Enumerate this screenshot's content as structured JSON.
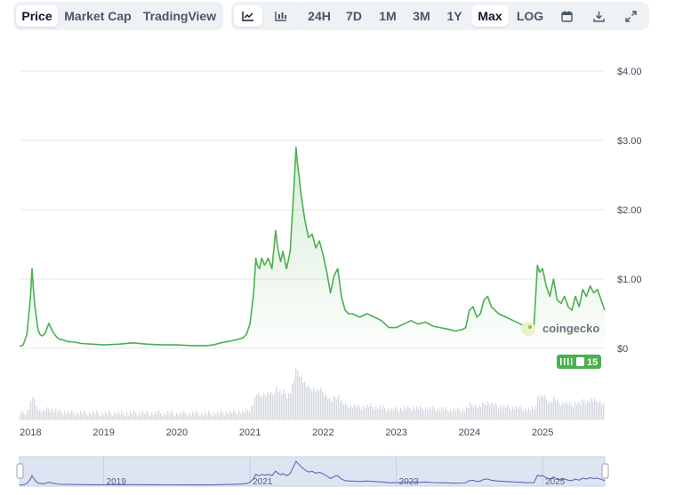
{
  "toolbar": {
    "tabs": [
      {
        "label": "Price",
        "active": true
      },
      {
        "label": "Market Cap",
        "active": false
      },
      {
        "label": "TradingView",
        "active": false
      }
    ],
    "chart_types": [
      {
        "icon": "line-chart-icon",
        "active": true
      },
      {
        "icon": "bar-chart-icon",
        "active": false
      }
    ],
    "ranges": [
      {
        "label": "24H",
        "active": false
      },
      {
        "label": "7D",
        "active": false
      },
      {
        "label": "1M",
        "active": false
      },
      {
        "label": "3M",
        "active": false
      },
      {
        "label": "1Y",
        "active": false
      },
      {
        "label": "Max",
        "active": true
      },
      {
        "label": "LOG",
        "active": false
      }
    ],
    "actions": [
      {
        "icon": "calendar-icon"
      },
      {
        "icon": "download-icon"
      },
      {
        "icon": "expand-icon"
      }
    ]
  },
  "watermark": "coingecko",
  "badge": {
    "value": "15"
  },
  "colors": {
    "line": "#4caf50",
    "area": "#4caf50",
    "volume": "#d7dbe2",
    "navigator_fill": "#dfe4f2",
    "navigator_line": "#5b6bbf",
    "grid": "#e6e8ec",
    "badge": "#4caf50"
  },
  "chart_data": {
    "type": "line",
    "title": "",
    "ylabel": "",
    "xlabel": "",
    "y_ticks": [
      "$4.00",
      "$3.00",
      "$2.00",
      "$1.00",
      "$0"
    ],
    "ylim": [
      0,
      4
    ],
    "x_ticks": [
      "2018",
      "2019",
      "2020",
      "2021",
      "2022",
      "2023",
      "2024",
      "2025"
    ],
    "navigator_ticks": [
      "2019",
      "2021",
      "2023",
      "2025"
    ],
    "xlim": [
      2017.85,
      2025.85
    ],
    "grid": true,
    "series": [
      {
        "x": [
          2017.85,
          2017.9,
          2017.95,
          2018.0,
          2018.02,
          2018.04,
          2018.06,
          2018.08,
          2018.1,
          2018.13,
          2018.16,
          2018.2,
          2018.25,
          2018.3,
          2018.33,
          2018.36,
          2018.4,
          2018.45,
          2018.5,
          2018.6,
          2018.7,
          2018.85,
          2019.0,
          2019.2,
          2019.4,
          2019.6,
          2019.8,
          2020.0,
          2020.2,
          2020.4,
          2020.5,
          2020.6,
          2020.7,
          2020.8,
          2020.9,
          2020.95,
          2021.0,
          2021.05,
          2021.08,
          2021.1,
          2021.13,
          2021.16,
          2021.2,
          2021.25,
          2021.3,
          2021.35,
          2021.38,
          2021.42,
          2021.45,
          2021.5,
          2021.55,
          2021.6,
          2021.63,
          2021.65,
          2021.67,
          2021.7,
          2021.75,
          2021.8,
          2021.85,
          2021.9,
          2021.95,
          2022.0,
          2022.05,
          2022.1,
          2022.15,
          2022.2,
          2022.25,
          2022.3,
          2022.35,
          2022.4,
          2022.5,
          2022.6,
          2022.7,
          2022.8,
          2022.9,
          2023.0,
          2023.1,
          2023.2,
          2023.3,
          2023.4,
          2023.5,
          2023.6,
          2023.7,
          2023.8,
          2023.9,
          2023.95,
          2024.0,
          2024.05,
          2024.1,
          2024.15,
          2024.2,
          2024.25,
          2024.3,
          2024.4,
          2024.5,
          2024.6,
          2024.7,
          2024.8,
          2024.85,
          2024.88,
          2024.9,
          2024.93,
          2024.96,
          2025.0,
          2025.05,
          2025.1,
          2025.15,
          2025.2,
          2025.25,
          2025.3,
          2025.35,
          2025.4,
          2025.45,
          2025.5,
          2025.55,
          2025.6,
          2025.65,
          2025.7,
          2025.75,
          2025.8,
          2025.85
        ],
        "y": [
          0.03,
          0.05,
          0.2,
          0.75,
          1.15,
          0.85,
          0.6,
          0.45,
          0.28,
          0.2,
          0.18,
          0.22,
          0.36,
          0.25,
          0.2,
          0.16,
          0.13,
          0.12,
          0.1,
          0.09,
          0.07,
          0.06,
          0.05,
          0.06,
          0.08,
          0.06,
          0.05,
          0.05,
          0.04,
          0.04,
          0.05,
          0.08,
          0.1,
          0.12,
          0.15,
          0.2,
          0.35,
          0.8,
          1.3,
          1.2,
          1.15,
          1.3,
          1.2,
          1.3,
          1.15,
          1.7,
          1.45,
          1.25,
          1.4,
          1.15,
          1.4,
          2.3,
          2.9,
          2.65,
          2.5,
          2.2,
          1.85,
          1.6,
          1.65,
          1.45,
          1.55,
          1.35,
          1.1,
          0.8,
          1.05,
          1.15,
          0.75,
          0.55,
          0.5,
          0.5,
          0.45,
          0.5,
          0.45,
          0.4,
          0.3,
          0.3,
          0.35,
          0.4,
          0.35,
          0.38,
          0.32,
          0.3,
          0.28,
          0.25,
          0.27,
          0.3,
          0.55,
          0.6,
          0.45,
          0.5,
          0.7,
          0.75,
          0.6,
          0.5,
          0.45,
          0.4,
          0.35,
          0.3,
          0.32,
          0.28,
          0.65,
          1.2,
          1.1,
          1.15,
          0.9,
          0.75,
          1.0,
          0.7,
          0.65,
          0.75,
          0.6,
          0.55,
          0.75,
          0.6,
          0.85,
          0.75,
          0.9,
          0.8,
          0.85,
          0.7,
          0.55
        ]
      }
    ]
  }
}
